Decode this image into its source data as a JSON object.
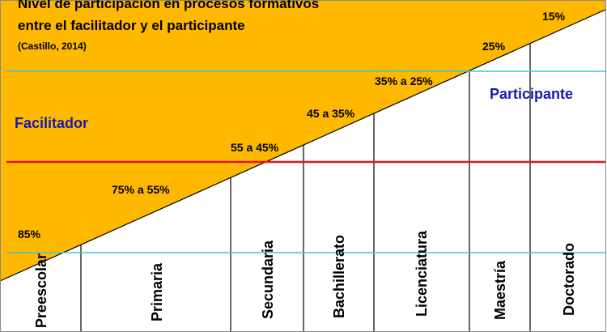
{
  "title_lines": [
    "Nivel de participación en procesos formativos",
    "entre el facilitador y el participante"
  ],
  "source": "(Castillo, 2014)",
  "roles": {
    "facilitator": "Facilitador",
    "participant": "Participante"
  },
  "percentages": [
    "85%",
    "75% a 55%",
    "55 a 45%",
    "45 a 35%",
    "35% a 25%",
    "25%",
    "15%"
  ],
  "levels": [
    "Preescolar",
    "Primaria",
    "Secundaria",
    "Bachillerato",
    "Licenciatura",
    "Maestría",
    "Doctorado"
  ]
}
